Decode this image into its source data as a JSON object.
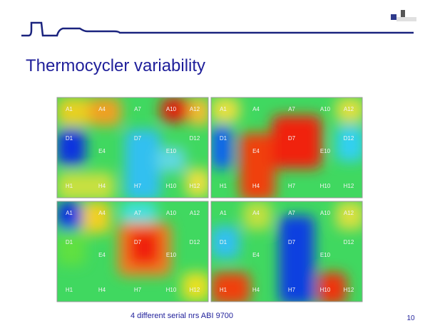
{
  "title": "Thermocycler variability",
  "panels": [
    {
      "labels": [
        "A1",
        "A4",
        "A7",
        "A10",
        "A12",
        "D1",
        "E4",
        "D7",
        "E10",
        "D12",
        "H1",
        "H4",
        "H7",
        "H10",
        "H12"
      ]
    },
    {
      "labels": [
        "A1",
        "A4",
        "A7",
        "A10",
        "A12",
        "D1",
        "E4",
        "D7",
        "E10",
        "D12",
        "H1",
        "H4",
        "H7",
        "H10",
        "H12"
      ]
    },
    {
      "labels": [
        "A1",
        "A4",
        "A7",
        "A10",
        "A12",
        "D1",
        "E4",
        "D7",
        "E10",
        "D12",
        "H1",
        "H4",
        "H7",
        "H10",
        "H12"
      ]
    },
    {
      "labels": [
        "A1",
        "A4",
        "A7",
        "A10",
        "A12",
        "D1",
        "E4",
        "D7",
        "E10",
        "D12",
        "H1",
        "H4",
        "H7",
        "H10",
        "H12"
      ]
    }
  ],
  "caption": "4 different serial nrs ABI 9700",
  "page_number": "10"
}
